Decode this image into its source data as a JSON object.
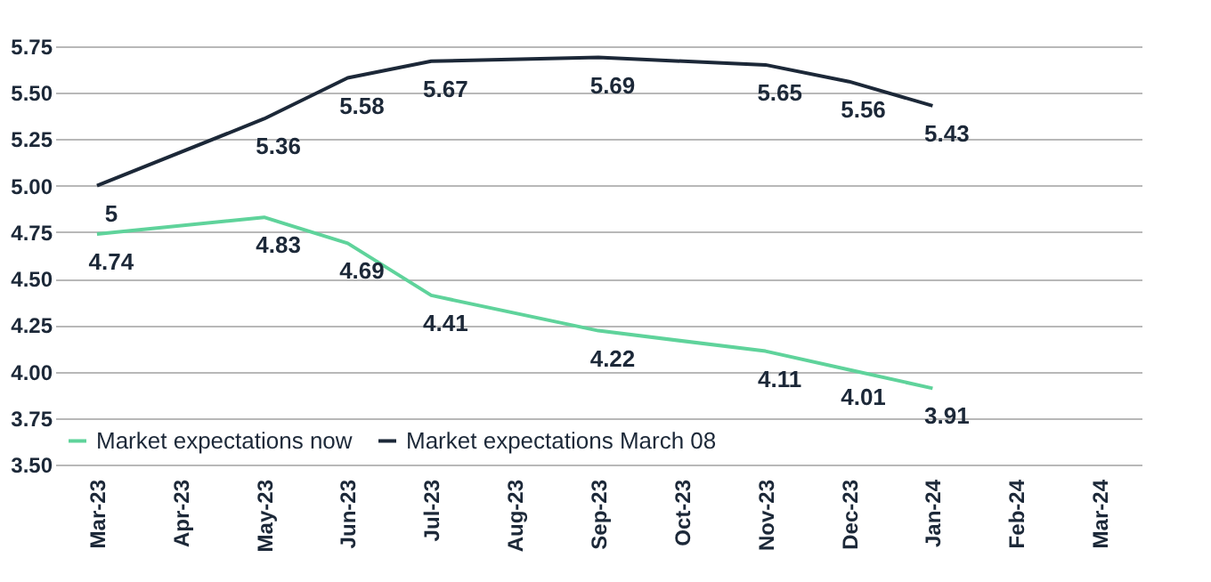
{
  "chart_data": {
    "type": "line",
    "categories": [
      "Mar-23",
      "Apr-23",
      "May-23",
      "Jun-23",
      "Jul-23",
      "Aug-23",
      "Sep-23",
      "Oct-23",
      "Nov-23",
      "Dec-23",
      "Jan-24",
      "Feb-24",
      "Mar-24"
    ],
    "series": [
      {
        "name": "Market expectations now",
        "color": "#5fd39b",
        "values": [
          4.74,
          null,
          4.83,
          4.69,
          4.41,
          null,
          4.22,
          null,
          4.11,
          4.01,
          3.91,
          null,
          null
        ]
      },
      {
        "name": "Market expectations March 08",
        "color": "#1c2838",
        "values": [
          5,
          null,
          5.36,
          5.58,
          5.67,
          null,
          5.69,
          null,
          5.65,
          5.56,
          5.43,
          null,
          null
        ]
      }
    ],
    "ylim": [
      3.5,
      5.75
    ],
    "yticks": [
      {
        "value": 3.5,
        "label": "3.50"
      },
      3.75,
      {
        "value": 4,
        "label": "4.00"
      },
      4.25,
      {
        "value": 4.5,
        "label": "4.50"
      },
      4.75,
      {
        "value": 5,
        "label": "5.00"
      },
      5.25,
      {
        "value": 5.5,
        "label": "5.50"
      },
      5.75
    ],
    "grid": "y",
    "legend": "bottom left",
    "data_labels": true
  }
}
